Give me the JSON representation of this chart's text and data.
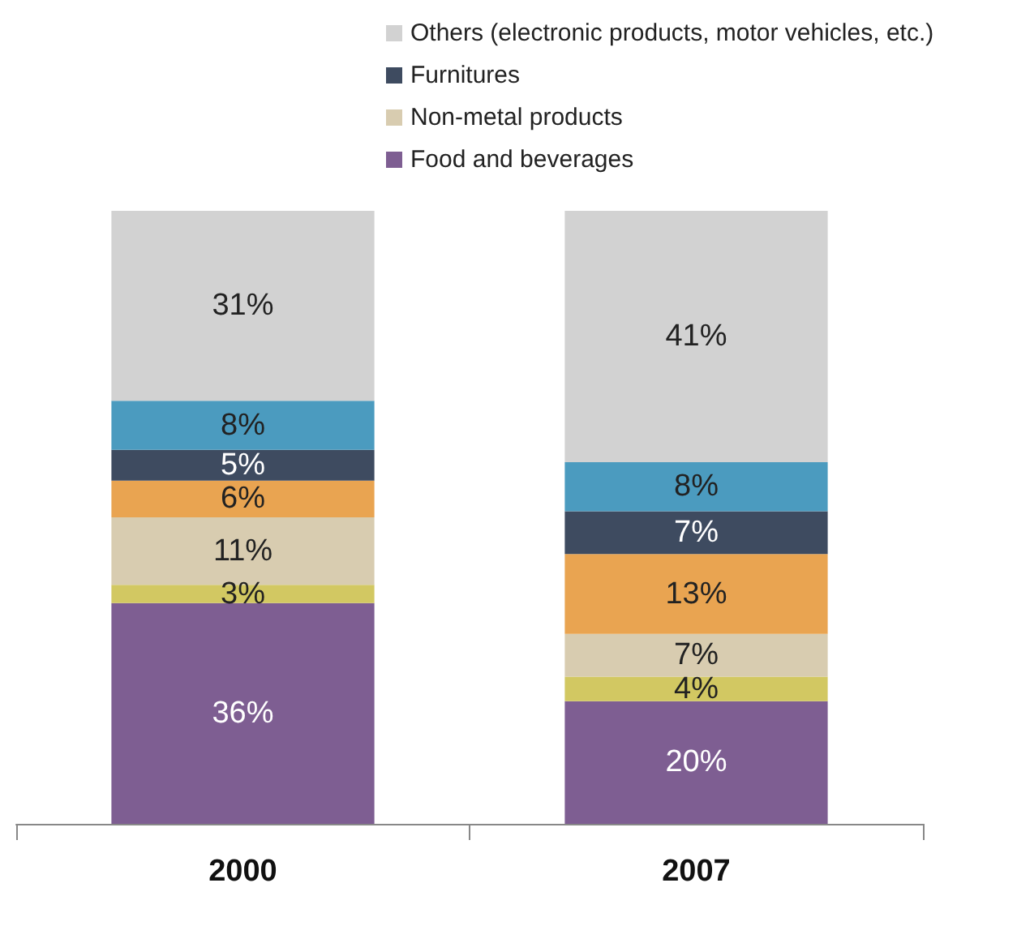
{
  "chart_data": {
    "type": "bar",
    "stacked": true,
    "categories": [
      "2000",
      "2007"
    ],
    "legend": "top right",
    "series": [
      {
        "name": "Food and beverages",
        "color": "#7e5e92",
        "values": [
          36,
          20
        ],
        "value_labels": [
          "36%",
          "20%"
        ]
      },
      {
        "color": "#d2c862",
        "values": [
          3,
          4
        ],
        "value_labels": [
          "3%",
          "4%"
        ]
      },
      {
        "name": "Non-metal products",
        "color": "#d8ccb0",
        "values": [
          11,
          7
        ],
        "value_labels": [
          "11%",
          "7%"
        ]
      },
      {
        "color": "#e9a451",
        "values": [
          6,
          13
        ],
        "value_labels": [
          "6%",
          "13%"
        ]
      },
      {
        "name": "Furnitures",
        "color": "#3e4b60",
        "values": [
          5,
          7
        ],
        "value_labels": [
          "5%",
          "7%"
        ]
      },
      {
        "color": "#4b9bbf",
        "values": [
          8,
          8
        ],
        "value_labels": [
          "8%",
          "8%"
        ]
      },
      {
        "name": "Others (electronic products, motor vehicles, etc.)",
        "color": "#d2d2d2",
        "values": [
          31,
          41
        ],
        "value_labels": [
          "31%",
          "41%"
        ]
      }
    ]
  }
}
